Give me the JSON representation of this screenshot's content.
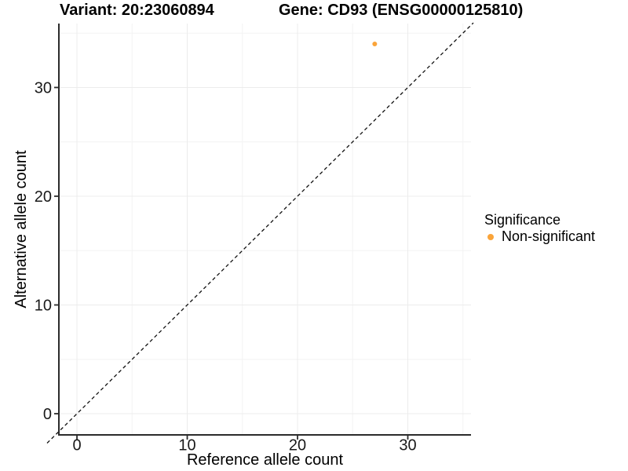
{
  "chart_data": {
    "type": "scatter",
    "titles": {
      "left": "Variant: 20:23060894",
      "right": "Gene: CD93 (ENSG00000125810)"
    },
    "xlabel": "Reference allele count",
    "ylabel": "Alternative allele count",
    "xticks": [
      0,
      10,
      20,
      30
    ],
    "yticks": [
      0,
      10,
      20,
      30
    ],
    "minor_xticks": [
      5,
      15,
      25,
      35
    ],
    "minor_yticks": [
      5,
      15,
      25,
      35
    ],
    "xlim": [
      -1.64,
      35.73
    ],
    "ylim": [
      -1.95,
      35.88
    ],
    "grid": "major+minor",
    "reference_line": {
      "kind": "identity y=x",
      "style": "dashed",
      "color": "#111111"
    },
    "legend": {
      "title": "Significance",
      "position": "right",
      "entries": [
        {
          "label": "Non-significant",
          "color": "#FAA43A"
        }
      ]
    },
    "series": [
      {
        "name": "Non-significant",
        "color": "#FAA43A",
        "points": [
          {
            "x": 27,
            "y": 34
          }
        ]
      }
    ]
  },
  "colors": {
    "background": "#FFFFFF",
    "axis_line": "#2b2b2b",
    "grid_major": "#ececec",
    "grid_minor": "#f3f3f3",
    "tick_text": "#1a1a1a",
    "point": "#FAA43A"
  }
}
